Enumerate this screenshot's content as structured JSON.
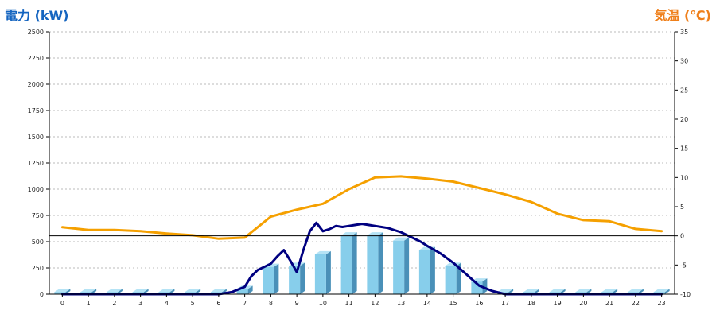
{
  "colors": {
    "left_axis_title": "#1565c0",
    "right_axis_title": "#ef7f1a",
    "bar_front": "#87ceeb",
    "bar_side": "#4a90b8",
    "bar_top": "#b5e3f5",
    "power_line": "#000080",
    "temp_line": "#f5a000",
    "grid": "#bbbbbb",
    "zero_temp_line": "#000000"
  },
  "chart_data": {
    "type": "bar",
    "ylabel": "電力 (kW)",
    "y2label": "気温 (℃)",
    "ylim": [
      0,
      2500
    ],
    "y2lim": [
      -10,
      35
    ],
    "left_ticks": [
      "0",
      "250",
      "500",
      "750",
      "1000",
      "1250",
      "1500",
      "1750",
      "2000",
      "2250",
      "2500"
    ],
    "right_ticks": [
      "-10",
      "-5",
      "0",
      "5",
      "10",
      "15",
      "20",
      "25",
      "30",
      "35"
    ],
    "categories": [
      "0",
      "1",
      "2",
      "3",
      "4",
      "5",
      "6",
      "7",
      "8",
      "9",
      "10",
      "11",
      "12",
      "13",
      "14",
      "15",
      "16",
      "17",
      "18",
      "19",
      "20",
      "21",
      "22",
      "23"
    ],
    "grid": true,
    "series": [
      {
        "type": "bar",
        "axis": "left",
        "values": [
          20,
          20,
          20,
          20,
          20,
          20,
          20,
          50,
          260,
          270,
          380,
          560,
          560,
          510,
          420,
          270,
          120,
          20,
          20,
          20,
          20,
          20,
          20,
          20
        ]
      },
      {
        "type": "line",
        "axis": "left",
        "x": [
          0,
          0.5,
          1,
          1.5,
          2,
          2.5,
          3,
          3.5,
          4,
          4.5,
          5,
          5.5,
          6,
          6.5,
          7,
          7.25,
          7.5,
          7.75,
          8,
          8.25,
          8.5,
          8.75,
          9,
          9.25,
          9.5,
          9.75,
          10,
          10.25,
          10.5,
          10.75,
          11,
          11.25,
          11.5,
          11.75,
          12,
          12.25,
          12.5,
          12.75,
          13,
          13.25,
          13.5,
          13.75,
          14,
          14.5,
          15,
          15.5,
          16,
          16.5,
          17,
          17.5,
          18,
          18.5,
          19,
          19.5,
          20,
          20.5,
          21,
          21.5,
          22,
          22.5,
          23
        ],
        "values": [
          0,
          0,
          0,
          0,
          0,
          0,
          0,
          0,
          0,
          0,
          0,
          0,
          0,
          20,
          70,
          170,
          230,
          260,
          290,
          360,
          420,
          320,
          210,
          420,
          600,
          680,
          600,
          620,
          650,
          640,
          650,
          660,
          670,
          660,
          650,
          640,
          630,
          610,
          590,
          560,
          530,
          500,
          460,
          390,
          300,
          190,
          80,
          30,
          0,
          0,
          0,
          0,
          0,
          0,
          0,
          0,
          0,
          0,
          0,
          0,
          0
        ]
      },
      {
        "type": "line",
        "axis": "right",
        "x": [
          0,
          1,
          2,
          3,
          4,
          5,
          6,
          7,
          8,
          9,
          10,
          11,
          12,
          13,
          14,
          15,
          16,
          17,
          18,
          19,
          20,
          21,
          22,
          23
        ],
        "values": [
          1.5,
          1.0,
          1.0,
          0.8,
          0.4,
          0.1,
          -0.5,
          -0.3,
          3.3,
          4.5,
          5.5,
          8.0,
          10.0,
          10.2,
          9.8,
          9.3,
          8.2,
          7.1,
          5.8,
          3.8,
          2.7,
          2.5,
          1.2,
          0.8
        ]
      }
    ]
  }
}
